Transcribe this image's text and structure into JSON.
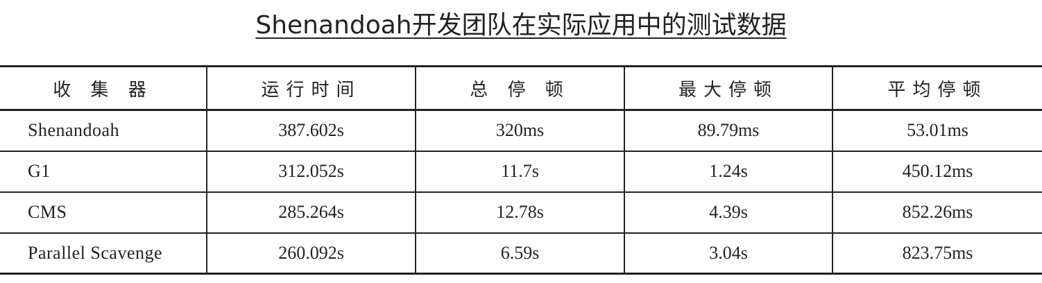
{
  "title": "Shenandoah开发团队在实际应用中的测试数据",
  "table": {
    "headers": [
      "收 集 器",
      "运行时间",
      "总 停 顿",
      "最大停顿",
      "平均停顿"
    ],
    "rows": [
      [
        "Shenandoah",
        "387.602s",
        "320ms",
        "89.79ms",
        "53.01ms"
      ],
      [
        "G1",
        "312.052s",
        "11.7s",
        "1.24s",
        "450.12ms"
      ],
      [
        "CMS",
        "285.264s",
        "12.78s",
        "4.39s",
        "852.26ms"
      ],
      [
        "Parallel Scavenge",
        "260.092s",
        "6.59s",
        "3.04s",
        "823.75ms"
      ]
    ]
  }
}
